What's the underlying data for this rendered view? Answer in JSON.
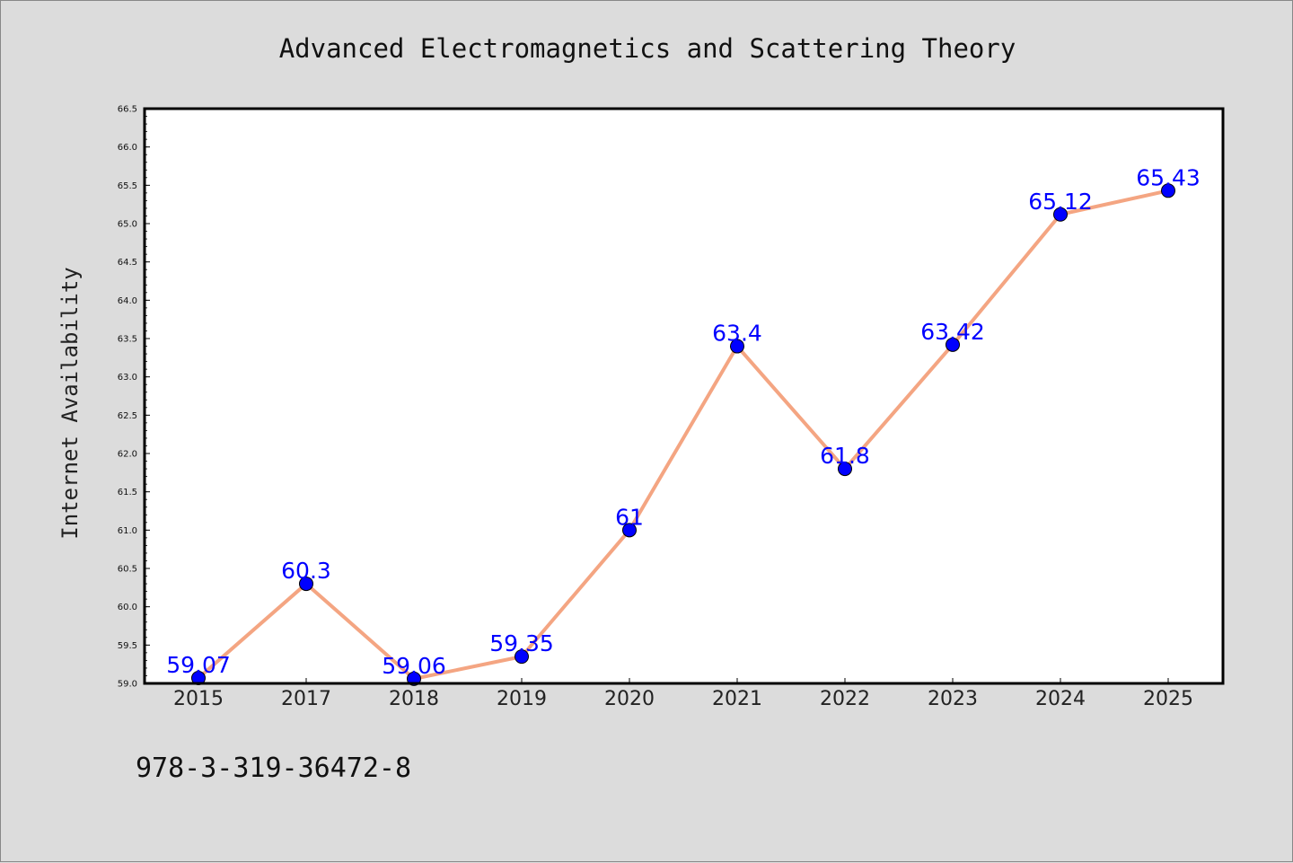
{
  "chart_data": {
    "type": "line",
    "title": "Advanced Electromagnetics and Scattering Theory",
    "xlabel": "",
    "ylabel": "Internet Availability",
    "categories": [
      "2015",
      "2017",
      "2018",
      "2019",
      "2020",
      "2021",
      "2022",
      "2023",
      "2024",
      "2025"
    ],
    "series": [
      {
        "values": [
          59.07,
          60.3,
          59.06,
          59.35,
          61,
          63.4,
          61.8,
          63.42,
          65.12,
          65.43
        ],
        "labels": [
          "59.07",
          "60.3",
          "59.06",
          "59.35",
          "61",
          "63.4",
          "61.8",
          "63.42",
          "65.12",
          "65.43"
        ]
      }
    ],
    "ylim": [
      59.0,
      66.5
    ],
    "yticks": [
      "59.0",
      "59.5",
      "60.0",
      "60.5",
      "61.0",
      "61.5",
      "62.0",
      "62.5",
      "63.0",
      "63.5",
      "64.0",
      "64.5",
      "65.0",
      "65.5",
      "66.0",
      "66.5"
    ],
    "grid": false,
    "colors": {
      "line": "#f4a582",
      "marker": "#0000ff",
      "data_label": "#0000ff",
      "background": "#dcdcdc",
      "plot_background": "#ffffff"
    }
  },
  "footer": {
    "isbn": "978-3-319-36472-8"
  }
}
